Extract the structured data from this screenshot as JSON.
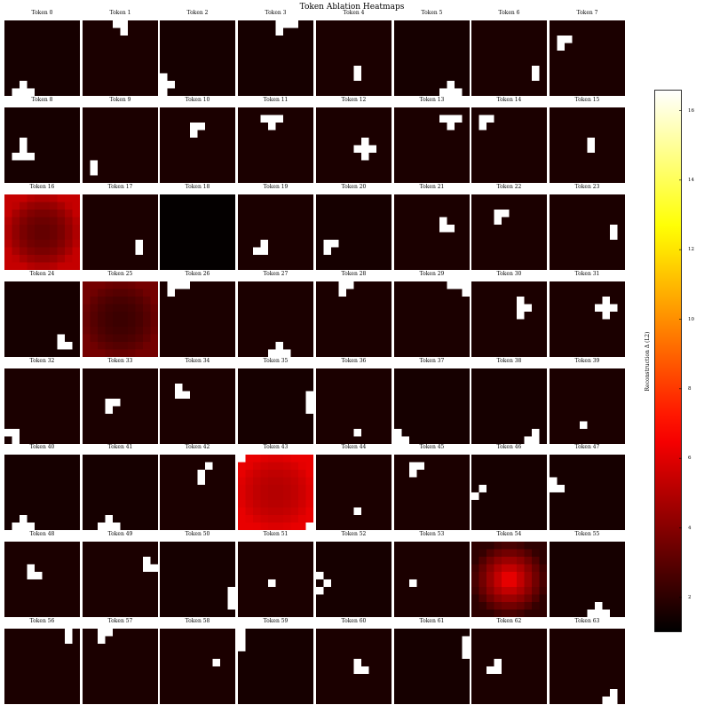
{
  "chart_data": {
    "type": "heatmap",
    "title": "Token Ablation Heatmaps",
    "colormap": "hot",
    "colorbar": {
      "label": "Reconstruction Δ (L2)",
      "range": [
        1.0,
        16.6
      ],
      "ticks": [
        "2",
        "4",
        "6",
        "8",
        "10",
        "12",
        "14",
        "16"
      ]
    },
    "grid_size": 10,
    "layout": {
      "rows": 8,
      "cols": 8
    },
    "panels": [
      {
        "title": "Token 0",
        "base": 1.5,
        "cells": [
          [
            2,
            8
          ],
          [
            1,
            9
          ],
          [
            2,
            9
          ],
          [
            3,
            9
          ]
        ]
      },
      {
        "title": "Token 1",
        "base": 1.6,
        "cells": [
          [
            4,
            0
          ],
          [
            5,
            0
          ],
          [
            5,
            1
          ]
        ]
      },
      {
        "title": "Token 2",
        "base": 1.5,
        "cells": [
          [
            0,
            7
          ],
          [
            0,
            8
          ],
          [
            1,
            8
          ],
          [
            0,
            9
          ]
        ]
      },
      {
        "title": "Token 3",
        "base": 1.5,
        "cells": [
          [
            5,
            0
          ],
          [
            6,
            0
          ],
          [
            7,
            0
          ],
          [
            5,
            1
          ]
        ]
      },
      {
        "title": "Token 4",
        "base": 1.6,
        "cells": [
          [
            5,
            6
          ],
          [
            5,
            7
          ]
        ]
      },
      {
        "title": "Token 5",
        "base": 1.5,
        "cells": [
          [
            7,
            8
          ],
          [
            6,
            9
          ],
          [
            7,
            9
          ],
          [
            8,
            9
          ]
        ]
      },
      {
        "title": "Token 6",
        "base": 1.6,
        "cells": [
          [
            8,
            6
          ],
          [
            8,
            7
          ]
        ]
      },
      {
        "title": "Token 7",
        "base": 1.6,
        "cells": [
          [
            1,
            2
          ],
          [
            2,
            2
          ],
          [
            1,
            3
          ]
        ]
      },
      {
        "title": "Token 8",
        "base": 1.5,
        "cells": [
          [
            2,
            4
          ],
          [
            2,
            5
          ],
          [
            1,
            6
          ],
          [
            2,
            6
          ],
          [
            3,
            6
          ]
        ]
      },
      {
        "title": "Token 9",
        "base": 1.6,
        "cells": [
          [
            1,
            7
          ],
          [
            1,
            8
          ]
        ]
      },
      {
        "title": "Token 10",
        "base": 1.6,
        "cells": [
          [
            4,
            2
          ],
          [
            5,
            2
          ],
          [
            4,
            3
          ]
        ]
      },
      {
        "title": "Token 11",
        "base": 1.6,
        "cells": [
          [
            3,
            1
          ],
          [
            4,
            1
          ],
          [
            5,
            1
          ],
          [
            4,
            2
          ]
        ]
      },
      {
        "title": "Token 12",
        "base": 1.6,
        "cells": [
          [
            6,
            4
          ],
          [
            5,
            5
          ],
          [
            6,
            5
          ],
          [
            7,
            5
          ],
          [
            6,
            6
          ]
        ]
      },
      {
        "title": "Token 13",
        "base": 1.6,
        "cells": [
          [
            6,
            1
          ],
          [
            7,
            1
          ],
          [
            8,
            1
          ],
          [
            7,
            2
          ]
        ]
      },
      {
        "title": "Token 14",
        "base": 1.6,
        "cells": [
          [
            1,
            1
          ],
          [
            2,
            1
          ],
          [
            1,
            2
          ]
        ]
      },
      {
        "title": "Token 15",
        "base": 1.6,
        "cells": [
          [
            5,
            4
          ],
          [
            5,
            5
          ]
        ]
      },
      {
        "title": "Token 16",
        "base": 3.2,
        "edge": 5.4,
        "cells": []
      },
      {
        "title": "Token 17",
        "base": 1.6,
        "cells": [
          [
            7,
            6
          ],
          [
            7,
            7
          ]
        ]
      },
      {
        "title": "Token 18",
        "base": 1.1,
        "cells": []
      },
      {
        "title": "Token 19",
        "base": 1.6,
        "cells": [
          [
            3,
            6
          ],
          [
            3,
            7
          ],
          [
            2,
            7
          ]
        ]
      },
      {
        "title": "Token 20",
        "base": 1.5,
        "cells": [
          [
            1,
            6
          ],
          [
            2,
            6
          ],
          [
            1,
            7
          ]
        ]
      },
      {
        "title": "Token 21",
        "base": 1.6,
        "cells": [
          [
            6,
            3
          ],
          [
            6,
            4
          ],
          [
            7,
            4
          ]
        ]
      },
      {
        "title": "Token 22",
        "base": 1.6,
        "cells": [
          [
            3,
            2
          ],
          [
            3,
            3
          ],
          [
            4,
            2
          ]
        ]
      },
      {
        "title": "Token 23",
        "base": 1.6,
        "cells": [
          [
            8,
            4
          ],
          [
            8,
            5
          ]
        ]
      },
      {
        "title": "Token 24",
        "base": 1.5,
        "cells": [
          [
            7,
            7
          ],
          [
            7,
            8
          ],
          [
            8,
            8
          ]
        ]
      },
      {
        "title": "Token 25",
        "base": 2.3,
        "edge": 3.6,
        "cells": []
      },
      {
        "title": "Token 26",
        "base": 1.6,
        "cells": [
          [
            1,
            0
          ],
          [
            2,
            0
          ],
          [
            3,
            0
          ],
          [
            1,
            1
          ]
        ]
      },
      {
        "title": "Token 27",
        "base": 1.6,
        "cells": [
          [
            5,
            8
          ],
          [
            4,
            9
          ],
          [
            5,
            9
          ],
          [
            6,
            9
          ]
        ]
      },
      {
        "title": "Token 28",
        "base": 1.6,
        "cells": [
          [
            3,
            0
          ],
          [
            4,
            0
          ],
          [
            3,
            1
          ]
        ]
      },
      {
        "title": "Token 29",
        "base": 1.6,
        "cells": [
          [
            7,
            0
          ],
          [
            8,
            0
          ],
          [
            9,
            0
          ],
          [
            9,
            1
          ]
        ]
      },
      {
        "title": "Token 30",
        "base": 1.6,
        "cells": [
          [
            6,
            2
          ],
          [
            6,
            3
          ],
          [
            7,
            3
          ],
          [
            6,
            4
          ]
        ]
      },
      {
        "title": "Token 31",
        "base": 1.6,
        "cells": [
          [
            7,
            2
          ],
          [
            6,
            3
          ],
          [
            7,
            3
          ],
          [
            8,
            3
          ],
          [
            7,
            4
          ]
        ]
      },
      {
        "title": "Token 32",
        "base": 1.6,
        "cells": [
          [
            0,
            8
          ],
          [
            1,
            8
          ],
          [
            1,
            9
          ]
        ]
      },
      {
        "title": "Token 33",
        "base": 1.6,
        "cells": [
          [
            3,
            4
          ],
          [
            4,
            4
          ],
          [
            3,
            5
          ]
        ]
      },
      {
        "title": "Token 34",
        "base": 1.6,
        "cells": [
          [
            2,
            2
          ],
          [
            2,
            3
          ],
          [
            3,
            3
          ]
        ]
      },
      {
        "title": "Token 35",
        "base": 1.5,
        "cells": [
          [
            9,
            3
          ],
          [
            9,
            4
          ],
          [
            9,
            5
          ]
        ]
      },
      {
        "title": "Token 36",
        "base": 1.6,
        "cells": [
          [
            5,
            8
          ]
        ]
      },
      {
        "title": "Token 37",
        "base": 1.5,
        "cells": [
          [
            0,
            8
          ],
          [
            0,
            9
          ],
          [
            1,
            9
          ]
        ]
      },
      {
        "title": "Token 38",
        "base": 1.5,
        "cells": [
          [
            8,
            8
          ],
          [
            7,
            9
          ],
          [
            8,
            9
          ]
        ]
      },
      {
        "title": "Token 39",
        "base": 1.6,
        "cells": [
          [
            4,
            7
          ]
        ]
      },
      {
        "title": "Token 40",
        "base": 1.5,
        "cells": [
          [
            2,
            8
          ],
          [
            1,
            9
          ],
          [
            2,
            9
          ],
          [
            3,
            9
          ]
        ]
      },
      {
        "title": "Token 41",
        "base": 1.5,
        "cells": [
          [
            3,
            8
          ],
          [
            2,
            9
          ],
          [
            3,
            9
          ],
          [
            4,
            9
          ]
        ]
      },
      {
        "title": "Token 42",
        "base": 1.6,
        "cells": [
          [
            6,
            1
          ],
          [
            5,
            2
          ],
          [
            5,
            3
          ]
        ]
      },
      {
        "title": "Token 43",
        "base": 5.0,
        "edge": 6.2,
        "cells": [
          [
            0,
            0
          ],
          [
            9,
            9
          ]
        ]
      },
      {
        "title": "Token 44",
        "base": 1.6,
        "cells": [
          [
            5,
            7
          ]
        ]
      },
      {
        "title": "Token 45",
        "base": 1.6,
        "cells": [
          [
            2,
            1
          ],
          [
            3,
            1
          ],
          [
            2,
            2
          ]
        ]
      },
      {
        "title": "Token 46",
        "base": 1.5,
        "cells": [
          [
            1,
            4
          ],
          [
            0,
            5
          ]
        ]
      },
      {
        "title": "Token 47",
        "base": 1.5,
        "cells": [
          [
            0,
            3
          ],
          [
            0,
            4
          ],
          [
            1,
            4
          ]
        ]
      },
      {
        "title": "Token 48",
        "base": 1.6,
        "cells": [
          [
            3,
            3
          ],
          [
            3,
            4
          ],
          [
            4,
            4
          ]
        ]
      },
      {
        "title": "Token 49",
        "base": 1.6,
        "cells": [
          [
            8,
            2
          ],
          [
            8,
            3
          ],
          [
            9,
            3
          ]
        ]
      },
      {
        "title": "Token 50",
        "base": 1.5,
        "cells": [
          [
            9,
            6
          ],
          [
            9,
            7
          ],
          [
            9,
            8
          ]
        ]
      },
      {
        "title": "Token 51",
        "base": 1.6,
        "cells": [
          [
            4,
            5
          ]
        ]
      },
      {
        "title": "Token 52",
        "base": 1.5,
        "cells": [
          [
            0,
            4
          ],
          [
            1,
            5
          ],
          [
            0,
            6
          ]
        ]
      },
      {
        "title": "Token 53",
        "base": 1.6,
        "cells": [
          [
            2,
            5
          ]
        ]
      },
      {
        "title": "Token 54",
        "base": 4.8,
        "center": 6.8,
        "edge": 2.0,
        "cells": []
      },
      {
        "title": "Token 55",
        "base": 1.5,
        "cells": [
          [
            6,
            8
          ],
          [
            5,
            9
          ],
          [
            6,
            9
          ],
          [
            7,
            9
          ]
        ]
      },
      {
        "title": "Token 56",
        "base": 1.6,
        "cells": [
          [
            8,
            0
          ],
          [
            8,
            1
          ]
        ]
      },
      {
        "title": "Token 57",
        "base": 1.6,
        "cells": [
          [
            2,
            0
          ],
          [
            3,
            0
          ],
          [
            2,
            1
          ]
        ]
      },
      {
        "title": "Token 58",
        "base": 1.6,
        "cells": [
          [
            7,
            4
          ]
        ]
      },
      {
        "title": "Token 59",
        "base": 1.5,
        "cells": [
          [
            0,
            0
          ],
          [
            0,
            1
          ],
          [
            0,
            2
          ]
        ]
      },
      {
        "title": "Token 60",
        "base": 1.6,
        "cells": [
          [
            5,
            4
          ],
          [
            5,
            5
          ],
          [
            6,
            5
          ]
        ]
      },
      {
        "title": "Token 61",
        "base": 1.5,
        "cells": [
          [
            9,
            1
          ],
          [
            9,
            2
          ],
          [
            9,
            3
          ]
        ]
      },
      {
        "title": "Token 62",
        "base": 1.6,
        "cells": [
          [
            3,
            4
          ],
          [
            2,
            5
          ],
          [
            3,
            5
          ]
        ]
      },
      {
        "title": "Token 63",
        "base": 1.6,
        "cells": [
          [
            8,
            8
          ],
          [
            7,
            9
          ],
          [
            8,
            9
          ]
        ]
      }
    ]
  }
}
